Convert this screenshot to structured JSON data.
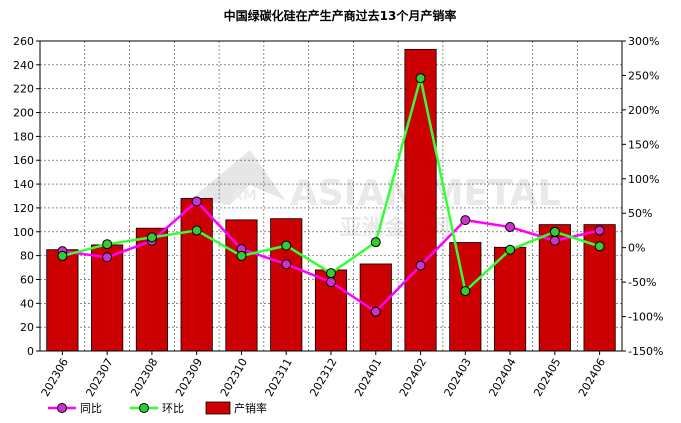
{
  "chart_data": {
    "type": "bar+line",
    "title": "中国绿碳化硅在产生产商过去13个月产销率",
    "categories": [
      "202306",
      "202307",
      "202308",
      "202309",
      "202310",
      "202311",
      "202312",
      "202401",
      "202402",
      "202403",
      "202404",
      "202405",
      "202406"
    ],
    "y_left": {
      "range": [
        0,
        260
      ],
      "ticks": [
        0,
        20,
        40,
        60,
        80,
        100,
        120,
        140,
        160,
        180,
        200,
        220,
        240,
        260
      ]
    },
    "y_right": {
      "range": [
        -150,
        300
      ],
      "unit": "%",
      "ticks": [
        "-150%",
        "-100%",
        "-50%",
        "0%",
        "50%",
        "100%",
        "150%",
        "200%",
        "250%",
        "300%"
      ],
      "tick_values": [
        -150,
        -100,
        -50,
        0,
        50,
        100,
        150,
        200,
        250,
        300
      ]
    },
    "grid": true,
    "legend_position": "bottom-left",
    "series": [
      {
        "name": "产销率",
        "kind": "bar",
        "axis": "left",
        "color": "#cc0000",
        "values": [
          85,
          89,
          103,
          128,
          110,
          111,
          68,
          73,
          253,
          91,
          87,
          106,
          106
        ]
      },
      {
        "name": "同比",
        "kind": "line",
        "axis": "right",
        "color": "#ff00ff",
        "marker_fill": "#cc33cc",
        "values": [
          -5,
          -14,
          10,
          67,
          -2,
          -24,
          -50,
          -93,
          -26,
          40,
          30,
          10,
          25
        ]
      },
      {
        "name": "环比",
        "kind": "line",
        "axis": "right",
        "color": "#33ff33",
        "marker_fill": "#33cc33",
        "values": [
          -12,
          5,
          15,
          25,
          -12,
          3,
          -37,
          8,
          246,
          -63,
          -3,
          23,
          2
        ]
      }
    ],
    "watermark": {
      "en": "ASIAN METAL",
      "cn": "亚洲金属网",
      "logo": "AM"
    }
  }
}
